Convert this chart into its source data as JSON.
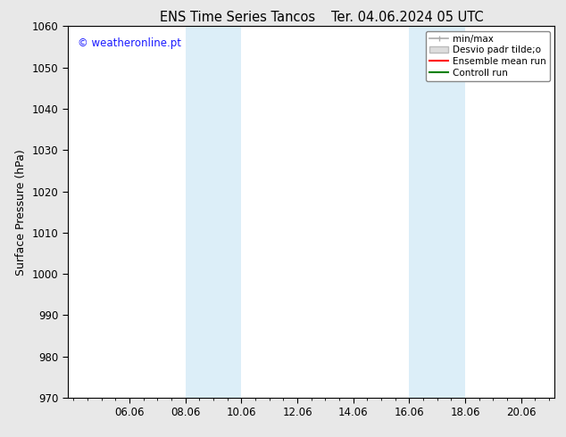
{
  "title": "ENS Time Series Tancos",
  "title2": "Ter. 04.06.2024 05 UTC",
  "ylabel": "Surface Pressure (hPa)",
  "ylim": [
    970,
    1060
  ],
  "yticks": [
    970,
    980,
    990,
    1000,
    1010,
    1020,
    1030,
    1040,
    1050,
    1060
  ],
  "xtick_labels": [
    "06.06",
    "08.06",
    "10.06",
    "12.06",
    "14.06",
    "16.06",
    "18.06",
    "20.06"
  ],
  "xtick_positions": [
    2,
    4,
    6,
    8,
    10,
    12,
    14,
    16
  ],
  "xlim": [
    -0.2,
    17.2
  ],
  "watermark": "© weatheronline.pt",
  "watermark_color": "#1a1aff",
  "bg_color": "#e8e8e8",
  "plot_bg_color": "#ffffff",
  "shaded_regions": [
    {
      "x_start": 4,
      "x_end": 6,
      "color": "#dceef8"
    },
    {
      "x_start": 12,
      "x_end": 14,
      "color": "#dceef8"
    }
  ],
  "legend_items": [
    {
      "label": "min/max",
      "color": "#aaaaaa",
      "lw": 1.2
    },
    {
      "label": "Desvio padr tilde;o",
      "color": "#cccccc",
      "lw": 6
    },
    {
      "label": "Ensemble mean run",
      "color": "#ff0000",
      "lw": 1.5
    },
    {
      "label": "Controll run",
      "color": "#008000",
      "lw": 1.5
    }
  ],
  "spine_color": "#000000",
  "tick_color": "#000000",
  "tick_fontsize": 8.5,
  "label_fontsize": 9,
  "title_fontsize": 10.5,
  "legend_fontsize": 7.5
}
